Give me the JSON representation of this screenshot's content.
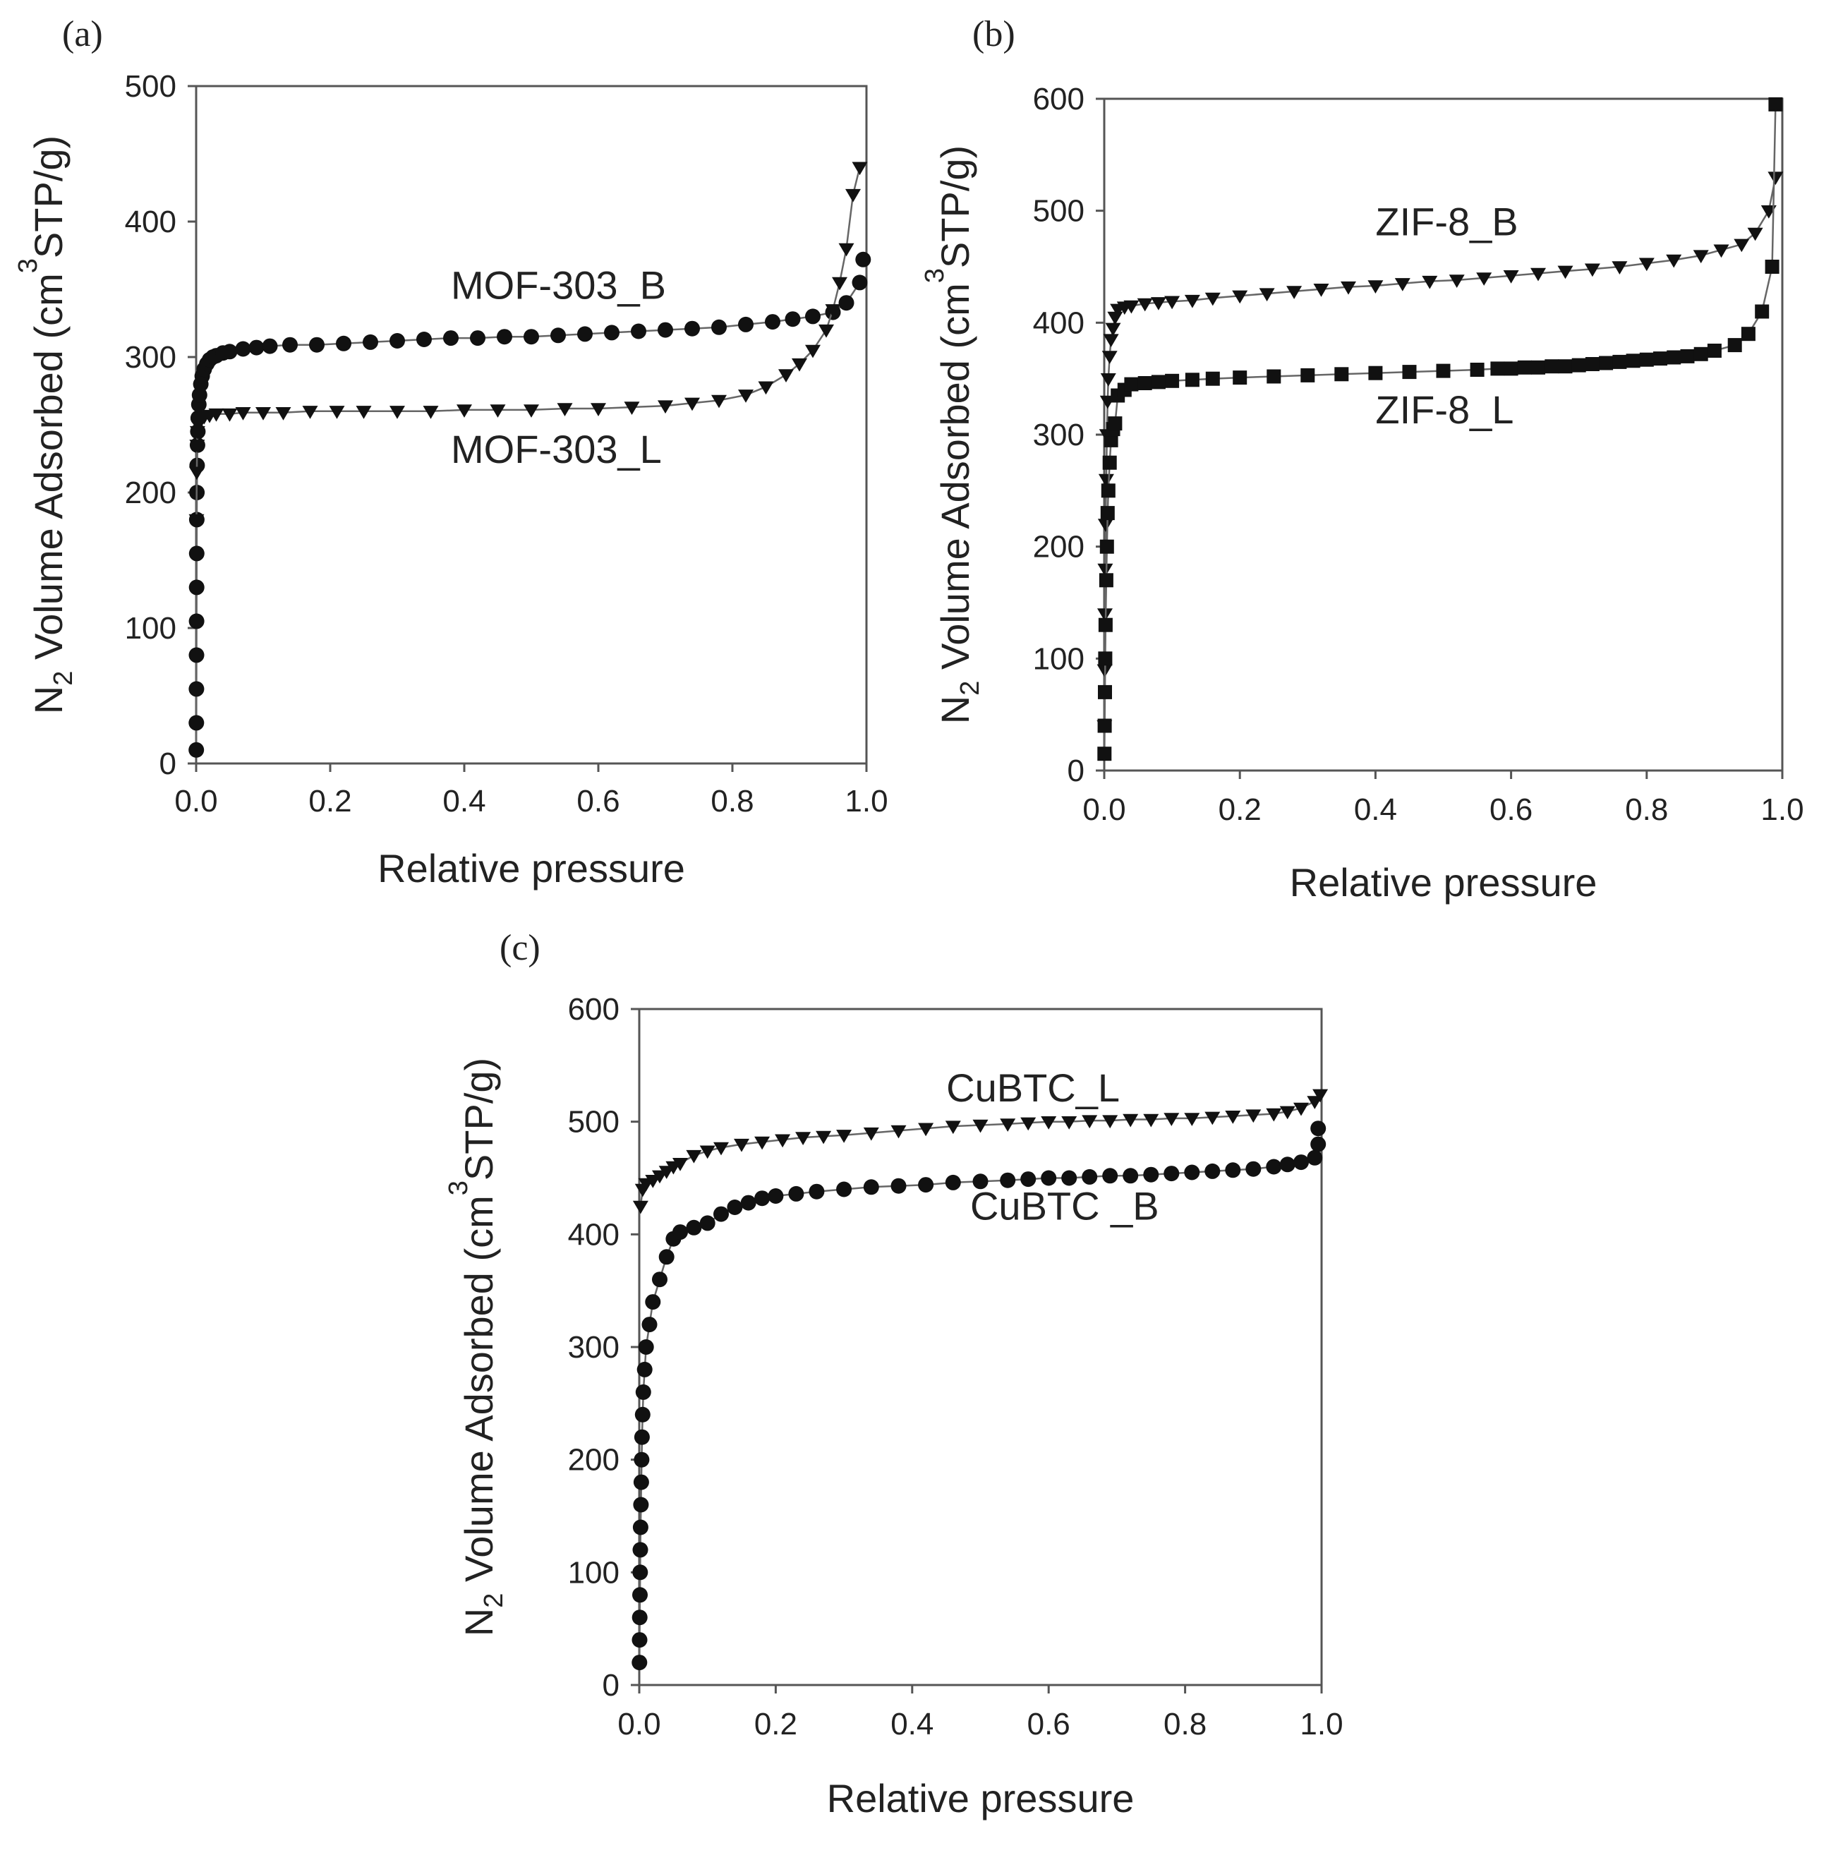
{
  "chart_data": [
    {
      "id": "a",
      "type": "scatter",
      "panel_label": "(a)",
      "xlabel": "Relative pressure",
      "ylabel_prefix": "N",
      "ylabel_sub": "2",
      "ylabel_middle": " Volume Adsorbed (cm",
      "ylabel_sup": "3",
      "ylabel_suffix": "STP/g)",
      "xlim": [
        0,
        1.0
      ],
      "ylim": [
        0,
        500
      ],
      "xticks": [
        "0.0",
        "0.2",
        "0.4",
        "0.6",
        "0.8",
        "1.0"
      ],
      "yticks": [
        "0",
        "100",
        "200",
        "300",
        "400",
        "500"
      ],
      "series": [
        {
          "name": "MOF-303_B",
          "marker": "circle",
          "label_text": "MOF-303_B",
          "label_pos": [
            0.38,
            343
          ],
          "x": [
            0.0002,
            0.0003,
            0.0004,
            0.0005,
            0.0006,
            0.0007,
            0.0008,
            0.001,
            0.0012,
            0.0015,
            0.002,
            0.0025,
            0.003,
            0.004,
            0.005,
            0.007,
            0.009,
            0.012,
            0.016,
            0.02,
            0.025,
            0.03,
            0.04,
            0.05,
            0.07,
            0.09,
            0.11,
            0.14,
            0.18,
            0.22,
            0.26,
            0.3,
            0.34,
            0.38,
            0.42,
            0.46,
            0.5,
            0.54,
            0.58,
            0.62,
            0.66,
            0.7,
            0.74,
            0.78,
            0.82,
            0.86,
            0.89,
            0.92,
            0.95,
            0.97,
            0.99
          ],
          "y": [
            10,
            30,
            55,
            80,
            105,
            130,
            155,
            180,
            200,
            220,
            235,
            245,
            255,
            265,
            272,
            280,
            286,
            291,
            295,
            298,
            300,
            301,
            303,
            304,
            306,
            307,
            308,
            309,
            309,
            310,
            311,
            312,
            313,
            314,
            314,
            315,
            315,
            316,
            317,
            318,
            319,
            320,
            321,
            322,
            324,
            326,
            328,
            330,
            333,
            340,
            355
          ]
        },
        {
          "name": "MOF-303_L",
          "marker": "triangle-down",
          "label_text": "MOF-303_L",
          "label_pos": [
            0.38,
            222
          ],
          "x": [
            0.0005,
            0.001,
            0.0015,
            0.002,
            0.003,
            0.005,
            0.008,
            0.012,
            0.02,
            0.03,
            0.05,
            0.07,
            0.1,
            0.13,
            0.17,
            0.21,
            0.25,
            0.3,
            0.35,
            0.4,
            0.45,
            0.5,
            0.55,
            0.6,
            0.65,
            0.7,
            0.74,
            0.78,
            0.82,
            0.85,
            0.88,
            0.9,
            0.92,
            0.94,
            0.95,
            0.96,
            0.97,
            0.98,
            0.99
          ],
          "y": [
            180,
            215,
            235,
            245,
            250,
            253,
            255,
            256,
            257,
            258,
            258,
            259,
            259,
            259,
            260,
            260,
            260,
            260,
            260,
            261,
            261,
            261,
            262,
            262,
            263,
            264,
            266,
            268,
            272,
            278,
            287,
            295,
            305,
            320,
            335,
            355,
            380,
            420,
            440
          ]
        }
      ],
      "extra_points": [
        {
          "marker": "circle",
          "x": 0.995,
          "y": 372
        }
      ]
    },
    {
      "id": "b",
      "type": "scatter",
      "panel_label": "(b)",
      "xlabel": "Relative pressure",
      "ylabel_prefix": "N",
      "ylabel_sub": "2",
      "ylabel_middle": " Volume Adsorbed (cm",
      "ylabel_sup": "3",
      "ylabel_suffix": "STP/g)",
      "xlim": [
        0,
        1.0
      ],
      "ylim": [
        0,
        600
      ],
      "xticks": [
        "0.0",
        "0.2",
        "0.4",
        "0.6",
        "0.8",
        "1.0"
      ],
      "yticks": [
        "0",
        "100",
        "200",
        "300",
        "400",
        "500",
        "600"
      ],
      "series": [
        {
          "name": "ZIF-8_B",
          "marker": "triangle-down",
          "label_text": "ZIF-8_B",
          "label_pos": [
            0.4,
            478
          ],
          "x": [
            0.0003,
            0.0006,
            0.001,
            0.0015,
            0.002,
            0.003,
            0.004,
            0.005,
            0.006,
            0.008,
            0.01,
            0.013,
            0.016,
            0.02,
            0.03,
            0.04,
            0.06,
            0.08,
            0.1,
            0.13,
            0.16,
            0.2,
            0.24,
            0.28,
            0.32,
            0.36,
            0.4,
            0.44,
            0.48,
            0.52,
            0.56,
            0.6,
            0.64,
            0.68,
            0.72,
            0.76,
            0.8,
            0.84,
            0.88,
            0.91,
            0.94,
            0.96,
            0.98,
            0.99
          ],
          "y": [
            40,
            90,
            140,
            180,
            220,
            260,
            300,
            330,
            350,
            370,
            385,
            395,
            405,
            412,
            414,
            415,
            417,
            418,
            419,
            420,
            422,
            424,
            426,
            428,
            430,
            432,
            433,
            435,
            437,
            438,
            440,
            442,
            444,
            446,
            448,
            450,
            453,
            456,
            460,
            465,
            470,
            480,
            500,
            530
          ]
        },
        {
          "name": "ZIF-8_L",
          "marker": "square",
          "label_text": "ZIF-8_L",
          "label_pos": [
            0.4,
            310
          ],
          "x": [
            0.0003,
            0.0006,
            0.001,
            0.0015,
            0.002,
            0.003,
            0.004,
            0.005,
            0.006,
            0.008,
            0.01,
            0.013,
            0.016,
            0.02,
            0.03,
            0.04,
            0.06,
            0.08,
            0.1,
            0.13,
            0.16,
            0.2,
            0.25,
            0.3,
            0.35,
            0.4,
            0.45,
            0.5,
            0.55,
            0.58,
            0.6,
            0.62,
            0.64,
            0.66,
            0.68,
            0.7,
            0.72,
            0.74,
            0.76,
            0.78,
            0.8,
            0.82,
            0.84,
            0.86,
            0.88,
            0.9,
            0.93,
            0.95,
            0.97,
            0.985,
            0.99
          ],
          "y": [
            15,
            40,
            70,
            100,
            130,
            170,
            200,
            230,
            250,
            275,
            295,
            305,
            310,
            335,
            340,
            345,
            346,
            347,
            348,
            349,
            350,
            351,
            352,
            353,
            354,
            355,
            356,
            357,
            358,
            359,
            359,
            360,
            360,
            361,
            361,
            362,
            363,
            364,
            365,
            366,
            367,
            368,
            369,
            370,
            372,
            375,
            380,
            390,
            410,
            450,
            595
          ]
        }
      ],
      "extra_points": []
    },
    {
      "id": "c",
      "type": "scatter",
      "panel_label": "(c)",
      "xlabel": "Relative pressure",
      "ylabel_prefix": "N",
      "ylabel_sub": "2",
      "ylabel_middle": " Volume Adsorbed (cm",
      "ylabel_sup": "3",
      "ylabel_suffix": "STP/g)",
      "xlim": [
        0,
        1.0
      ],
      "ylim": [
        0,
        600
      ],
      "xticks": [
        "0.0",
        "0.2",
        "0.4",
        "0.6",
        "0.8",
        "1.0"
      ],
      "yticks": [
        "0",
        "100",
        "200",
        "300",
        "400",
        "500",
        "600"
      ],
      "series": [
        {
          "name": "CuBTC_L",
          "marker": "triangle-down",
          "label_text": "CuBTC_L",
          "label_pos": [
            0.45,
            518
          ],
          "x": [
            0.002,
            0.005,
            0.01,
            0.02,
            0.03,
            0.04,
            0.05,
            0.06,
            0.08,
            0.1,
            0.12,
            0.15,
            0.18,
            0.21,
            0.24,
            0.27,
            0.3,
            0.34,
            0.38,
            0.42,
            0.46,
            0.5,
            0.54,
            0.57,
            0.6,
            0.63,
            0.66,
            0.69,
            0.72,
            0.75,
            0.78,
            0.81,
            0.84,
            0.87,
            0.9,
            0.93,
            0.95,
            0.97,
            0.99
          ],
          "y": [
            425,
            440,
            445,
            448,
            452,
            456,
            460,
            463,
            470,
            474,
            477,
            480,
            482,
            484,
            486,
            487,
            488,
            490,
            492,
            494,
            496,
            497,
            498,
            499,
            500,
            500,
            501,
            501,
            502,
            502,
            503,
            503,
            504,
            505,
            506,
            507,
            509,
            512,
            518
          ]
        },
        {
          "name": "CuBTC _B",
          "marker": "circle",
          "label_text": "CuBTC _B",
          "label_pos": [
            0.485,
            413
          ],
          "x": [
            0.0003,
            0.0005,
            0.0007,
            0.001,
            0.0013,
            0.0016,
            0.002,
            0.0025,
            0.003,
            0.0035,
            0.004,
            0.005,
            0.006,
            0.008,
            0.01,
            0.015,
            0.02,
            0.03,
            0.04,
            0.05,
            0.06,
            0.08,
            0.1,
            0.12,
            0.14,
            0.16,
            0.18,
            0.2,
            0.23,
            0.26,
            0.3,
            0.34,
            0.38,
            0.42,
            0.46,
            0.5,
            0.54,
            0.57,
            0.6,
            0.63,
            0.66,
            0.69,
            0.72,
            0.75,
            0.78,
            0.81,
            0.84,
            0.87,
            0.9,
            0.93,
            0.95,
            0.97,
            0.99,
            0.995
          ],
          "y": [
            20,
            40,
            60,
            80,
            100,
            120,
            140,
            160,
            180,
            200,
            220,
            240,
            260,
            280,
            300,
            320,
            340,
            360,
            380,
            396,
            402,
            406,
            410,
            418,
            424,
            428,
            432,
            434,
            436,
            438,
            440,
            442,
            443,
            444,
            446,
            447,
            448,
            449,
            450,
            450,
            451,
            452,
            452,
            453,
            454,
            455,
            456,
            457,
            458,
            460,
            462,
            464,
            468,
            480
          ]
        }
      ],
      "extra_points": [
        {
          "marker": "circle",
          "x": 0.995,
          "y": 494
        },
        {
          "marker": "triangle-down",
          "x": 0.998,
          "y": 524
        }
      ]
    }
  ]
}
